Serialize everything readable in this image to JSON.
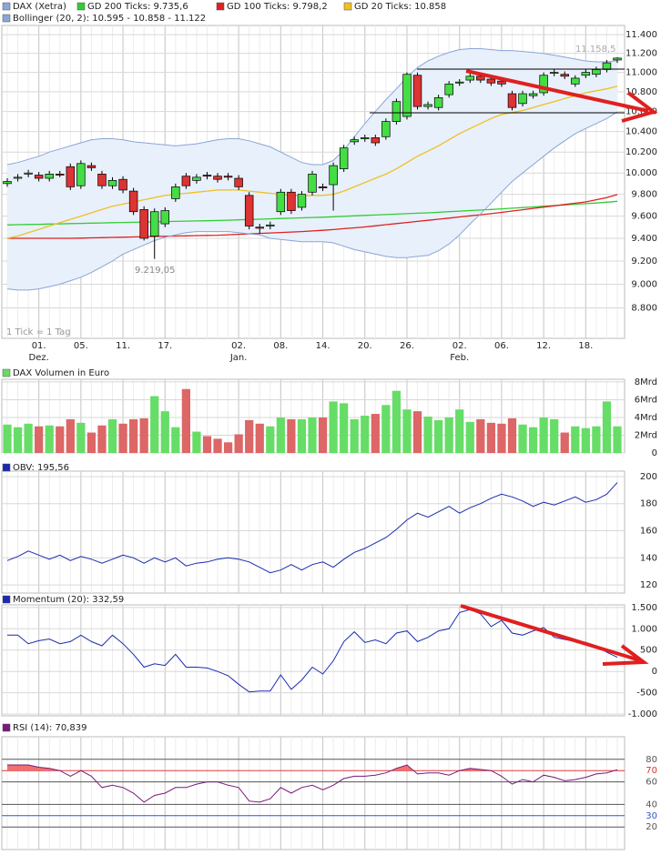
{
  "chart_data": [
    {
      "type": "candlestick",
      "name": "DAX (Xetra)",
      "name_color": "#8aa6d6",
      "up_color": "#44dd44",
      "down_color": "#dd3333",
      "categories": [
        null,
        null,
        null,
        "01.",
        null,
        null,
        null,
        "05.",
        null,
        null,
        null,
        "11.",
        null,
        null,
        null,
        "17.",
        null,
        null,
        null,
        null,
        null,
        null,
        "02.",
        null,
        null,
        null,
        "08.",
        null,
        null,
        null,
        "14.",
        null,
        null,
        null,
        "20.",
        null,
        null,
        null,
        "26.",
        null,
        null,
        null,
        null,
        "02.",
        null,
        null,
        null,
        "06.",
        null,
        null,
        null,
        "12.",
        null,
        null,
        null,
        "18.",
        null,
        null,
        null
      ],
      "category_groups": [
        null,
        null,
        null,
        "Dez.",
        null,
        null,
        null,
        null,
        null,
        null,
        null,
        null,
        null,
        null,
        null,
        null,
        null,
        null,
        null,
        null,
        null,
        null,
        "Jan.",
        null,
        null,
        null,
        null,
        null,
        null,
        null,
        null,
        null,
        null,
        null,
        null,
        null,
        null,
        null,
        null,
        null,
        null,
        null,
        null,
        "Feb.",
        null,
        null,
        null,
        null,
        null,
        null,
        null,
        null,
        null,
        null,
        null,
        null,
        null,
        null,
        null
      ],
      "open": [
        9900,
        9950,
        9990,
        9980,
        9950,
        9990,
        10060,
        9880,
        10070,
        9990,
        9880,
        9940,
        9830,
        9660,
        9420,
        9530,
        9760,
        9970,
        9930,
        9980,
        9970,
        9970,
        9950,
        9790,
        9500,
        9510,
        9640,
        9820,
        9680,
        9820,
        9870,
        9890,
        10040,
        10300,
        10330,
        10340,
        10350,
        10500,
        10550,
        10970,
        10650,
        10640,
        10770,
        10890,
        10920,
        10960,
        10930,
        10910,
        10780,
        10680,
        10760,
        10790,
        10990,
        10980,
        10880,
        10970,
        10980,
        11030,
        11130
      ],
      "high": [
        9950,
        9990,
        10030,
        10010,
        10020,
        10020,
        10090,
        10120,
        10100,
        10020,
        9960,
        9970,
        9860,
        9690,
        9670,
        9680,
        9900,
        10000,
        9990,
        10010,
        10000,
        10000,
        9980,
        9820,
        9530,
        9550,
        9850,
        9850,
        9830,
        10020,
        9900,
        10100,
        10270,
        10350,
        10370,
        10370,
        10530,
        10730,
        11000,
        11000,
        10700,
        10770,
        10910,
        10930,
        10990,
        10990,
        10960,
        10940,
        10810,
        10810,
        10810,
        11000,
        11030,
        11010,
        10970,
        11030,
        11060,
        11130,
        11158.5
      ],
      "low": [
        9870,
        9920,
        9960,
        9920,
        9920,
        9960,
        9840,
        9850,
        10020,
        9850,
        9850,
        9810,
        9610,
        9380,
        9219.05,
        9500,
        9730,
        9850,
        9900,
        9940,
        9910,
        9930,
        9840,
        9480,
        9440,
        9480,
        9610,
        9620,
        9650,
        9790,
        9830,
        9650,
        10010,
        10270,
        10300,
        10260,
        10320,
        10470,
        10520,
        10620,
        10620,
        10610,
        10740,
        10860,
        10890,
        10890,
        10860,
        10850,
        10610,
        10650,
        10730,
        10760,
        10960,
        10930,
        10850,
        10940,
        10950,
        11000,
        11100
      ],
      "close": [
        9920,
        9960,
        10000,
        9950,
        9990,
        9980,
        9870,
        10090,
        10050,
        9880,
        9930,
        9840,
        9640,
        9400,
        9640,
        9650,
        9870,
        9880,
        9960,
        9970,
        9940,
        9960,
        9870,
        9510,
        9490,
        9520,
        9820,
        9650,
        9800,
        9990,
        9860,
        10070,
        10240,
        10320,
        10340,
        10290,
        10500,
        10700,
        10980,
        10650,
        10670,
        10740,
        10880,
        10900,
        10960,
        10920,
        10890,
        10880,
        10640,
        10780,
        10780,
        10970,
        11000,
        10960,
        10940,
        11000,
        11030,
        11100,
        11150
      ],
      "series": [
        {
          "name": "GD 200 Ticks: 9.735,6",
          "color": "#33cc33",
          "values": [
            9520,
            9522,
            9524,
            9526,
            9528,
            9530,
            9532,
            9534,
            9536,
            9538,
            9540,
            9542,
            9544,
            9546,
            9548,
            9550,
            9552,
            9554,
            9556,
            9558,
            9560,
            9563,
            9566,
            9569,
            9572,
            9575,
            9578,
            9581,
            9584,
            9587,
            9590,
            9594,
            9598,
            9602,
            9606,
            9610,
            9614,
            9618,
            9622,
            9626,
            9630,
            9635,
            9640,
            9645,
            9650,
            9655,
            9660,
            9666,
            9672,
            9678,
            9684,
            9690,
            9696,
            9702,
            9708,
            9714,
            9720,
            9727,
            9735.6
          ]
        },
        {
          "name": "GD 100 Ticks: 9.798,2",
          "color": "#dd2222",
          "values": [
            9400,
            9400,
            9400,
            9400,
            9400,
            9400,
            9400,
            9402,
            9404,
            9406,
            9408,
            9410,
            9412,
            9414,
            9416,
            9418,
            9420,
            9422,
            9424,
            9426,
            9428,
            9432,
            9436,
            9440,
            9444,
            9448,
            9452,
            9456,
            9460,
            9466,
            9472,
            9478,
            9486,
            9494,
            9502,
            9512,
            9522,
            9532,
            9542,
            9552,
            9562,
            9572,
            9582,
            9592,
            9602,
            9612,
            9622,
            9634,
            9646,
            9658,
            9670,
            9682,
            9694,
            9706,
            9718,
            9730,
            9750,
            9770,
            9798.2
          ]
        },
        {
          "name": "GD 20 Ticks: 10.858",
          "color": "#f0c020",
          "values": [
            9400,
            9420,
            9450,
            9480,
            9510,
            9540,
            9570,
            9600,
            9630,
            9660,
            9690,
            9710,
            9730,
            9750,
            9770,
            9790,
            9800,
            9810,
            9820,
            9830,
            9840,
            9840,
            9840,
            9830,
            9820,
            9810,
            9800,
            9790,
            9790,
            9790,
            9790,
            9800,
            9830,
            9870,
            9910,
            9950,
            9990,
            10040,
            10100,
            10160,
            10210,
            10260,
            10320,
            10380,
            10430,
            10480,
            10530,
            10570,
            10590,
            10610,
            10640,
            10670,
            10700,
            10730,
            10760,
            10790,
            10810,
            10830,
            10858
          ]
        },
        {
          "name": "Bollinger (20, 2): 10.595 - 10.858 - 11.122",
          "color": "#8aa6d6",
          "fill": "#e8f0fb",
          "upper": [
            10080,
            10100,
            10130,
            10160,
            10200,
            10230,
            10260,
            10290,
            10320,
            10330,
            10330,
            10320,
            10300,
            10290,
            10280,
            10270,
            10260,
            10270,
            10280,
            10300,
            10320,
            10330,
            10330,
            10310,
            10280,
            10250,
            10200,
            10150,
            10100,
            10080,
            10080,
            10120,
            10220,
            10350,
            10480,
            10600,
            10720,
            10830,
            10950,
            11050,
            11120,
            11170,
            11210,
            11240,
            11250,
            11250,
            11240,
            11230,
            11230,
            11220,
            11210,
            11200,
            11180,
            11160,
            11140,
            11120,
            11110,
            11110,
            11122
          ],
          "lower": [
            8960,
            8950,
            8950,
            8960,
            8980,
            9000,
            9030,
            9060,
            9100,
            9150,
            9200,
            9260,
            9300,
            9340,
            9380,
            9410,
            9430,
            9450,
            9460,
            9460,
            9460,
            9460,
            9450,
            9440,
            9430,
            9400,
            9390,
            9380,
            9370,
            9370,
            9370,
            9360,
            9330,
            9300,
            9280,
            9260,
            9240,
            9230,
            9230,
            9240,
            9250,
            9290,
            9350,
            9430,
            9530,
            9620,
            9720,
            9820,
            9920,
            10000,
            10080,
            10160,
            10240,
            10310,
            10380,
            10430,
            10480,
            10530,
            10595
          ]
        }
      ],
      "log": true,
      "ylim": [
        8550,
        11500
      ],
      "yticks": [
        {
          "value": 8800,
          "label": "8.800"
        },
        {
          "value": 9000,
          "label": "9.000"
        },
        {
          "value": 9200,
          "label": "9.200"
        },
        {
          "value": 9400,
          "label": "9.400"
        },
        {
          "value": 9600,
          "label": "9.600"
        },
        {
          "value": 9800,
          "label": "9.800"
        },
        {
          "value": 10000,
          "label": "10.000"
        },
        {
          "value": 10200,
          "label": "10.200"
        },
        {
          "value": 10400,
          "label": "10.400"
        },
        {
          "value": 10600,
          "label": "10.600"
        },
        {
          "value": 10800,
          "label": "10.800"
        },
        {
          "value": 11000,
          "label": "11.000"
        },
        {
          "value": 11200,
          "label": "11.200"
        },
        {
          "value": 11400,
          "label": "11.400"
        }
      ],
      "annotations": [
        "11.158,5",
        "9.219,05",
        "1 Tick = 1 Tag"
      ],
      "grid": true
    },
    {
      "type": "bar",
      "title": "DAX Volumen in Euro",
      "color": "#66dd66",
      "values": [
        3.2,
        2.9,
        3.3,
        3.0,
        3.1,
        3.0,
        3.8,
        3.4,
        2.3,
        3.1,
        3.8,
        3.3,
        3.8,
        3.9,
        6.4,
        4.7,
        2.9,
        7.2,
        2.4,
        1.9,
        1.6,
        1.2,
        2.1,
        3.7,
        3.3,
        3.0,
        4.0,
        3.8,
        3.8,
        4.0,
        4.0,
        5.8,
        5.6,
        3.8,
        4.2,
        4.4,
        5.4,
        7.0,
        4.9,
        4.7,
        4.1,
        3.7,
        4.0,
        4.9,
        3.5,
        3.8,
        3.4,
        3.3,
        3.9,
        3.2,
        2.9,
        4.0,
        3.8,
        2.3,
        3.0,
        2.8,
        3.0,
        5.8,
        3.0
      ],
      "colors": [
        "#66dd66",
        "#66dd66",
        "#66dd66",
        "#dd6666",
        "#66dd66",
        "#dd6666",
        "#dd6666",
        "#66dd66",
        "#dd6666",
        "#dd6666",
        "#66dd66",
        "#dd6666",
        "#dd6666",
        "#dd6666",
        "#66dd66",
        "#66dd66",
        "#66dd66",
        "#dd6666",
        "#66dd66",
        "#dd6666",
        "#dd6666",
        "#dd6666",
        "#dd6666",
        "#dd6666",
        "#dd6666",
        "#66dd66",
        "#66dd66",
        "#dd6666",
        "#66dd66",
        "#66dd66",
        "#dd6666",
        "#66dd66",
        "#66dd66",
        "#66dd66",
        "#66dd66",
        "#dd6666",
        "#66dd66",
        "#66dd66",
        "#66dd66",
        "#dd6666",
        "#66dd66",
        "#66dd66",
        "#66dd66",
        "#66dd66",
        "#66dd66",
        "#dd6666",
        "#dd6666",
        "#dd6666",
        "#dd6666",
        "#66dd66",
        "#66dd66",
        "#66dd66",
        "#66dd66",
        "#dd6666",
        "#66dd66",
        "#66dd66",
        "#66dd66",
        "#66dd66",
        "#66dd66"
      ],
      "ylim": [
        0,
        8.3
      ],
      "yticks": [
        0,
        {
          "value": 2,
          "label": "2Mrd"
        },
        {
          "value": 4,
          "label": "4Mrd"
        },
        {
          "value": 6,
          "label": "6Mrd"
        },
        {
          "value": 8,
          "label": "8Mrd"
        }
      ],
      "grid": true
    },
    {
      "type": "line",
      "title": "OBV: 195,56",
      "color": "#1a2bb0",
      "values": [
        138,
        141,
        145,
        142,
        139,
        142,
        138,
        141,
        139,
        136,
        139,
        142,
        140,
        136,
        140,
        137,
        140,
        134,
        136,
        137,
        139,
        140,
        139,
        137,
        133,
        129,
        131,
        135,
        131,
        135,
        137,
        133,
        139,
        144,
        147,
        151,
        155,
        161,
        168,
        173,
        170,
        174,
        178,
        173,
        177,
        180,
        184,
        187,
        185,
        182,
        178,
        181,
        179,
        182,
        185,
        181,
        183,
        187,
        195.56
      ],
      "ylim": [
        114,
        204
      ],
      "yticks": [
        120,
        140,
        160,
        180,
        200
      ],
      "grid": true
    },
    {
      "type": "line",
      "title": "Momentum (20): 332,59",
      "color": "#1a2bb0",
      "values": [
        850,
        850,
        650,
        720,
        760,
        650,
        700,
        850,
        700,
        600,
        850,
        650,
        400,
        100,
        180,
        140,
        400,
        100,
        100,
        80,
        0,
        -100,
        -300,
        -480,
        -460,
        -460,
        -80,
        -420,
        -200,
        100,
        -60,
        250,
        700,
        930,
        680,
        740,
        650,
        900,
        950,
        700,
        800,
        950,
        1000,
        1380,
        1450,
        1350,
        1050,
        1200,
        900,
        850,
        950,
        1030,
        800,
        750,
        700,
        680,
        600,
        450,
        332.59
      ],
      "ylim": [
        -1040,
        1560
      ],
      "yticks": [
        {
          "value": -1000,
          "label": "-1.000"
        },
        -500,
        0,
        500,
        {
          "value": 1000,
          "label": "1.000"
        },
        {
          "value": 1500,
          "label": "1.500"
        }
      ],
      "grid": true
    },
    {
      "type": "line",
      "title": "RSI (14): 70,839",
      "color": "#7a1a7a",
      "fill_color": "#f07070",
      "fill_above": 70,
      "values": [
        75,
        75,
        75,
        73,
        72,
        70,
        65,
        70,
        65,
        55,
        57,
        55,
        50,
        42,
        48,
        50,
        55,
        55,
        58,
        60,
        60,
        57,
        55,
        43,
        42,
        45,
        55,
        50,
        55,
        57,
        53,
        57,
        63,
        65,
        65,
        66,
        68,
        72,
        75,
        67,
        68,
        68,
        66,
        70,
        72,
        71,
        70,
        65,
        58,
        62,
        60,
        66,
        64,
        61,
        62,
        64,
        67,
        68,
        70.839
      ],
      "ylim": [
        0,
        100
      ],
      "yticks": [
        20,
        30,
        40,
        60,
        70,
        80
      ],
      "tick_colors": [
        "#555555",
        "#3355cc",
        "#555555",
        "#555555",
        "#dd3333",
        "#555555"
      ],
      "grid": true
    }
  ]
}
